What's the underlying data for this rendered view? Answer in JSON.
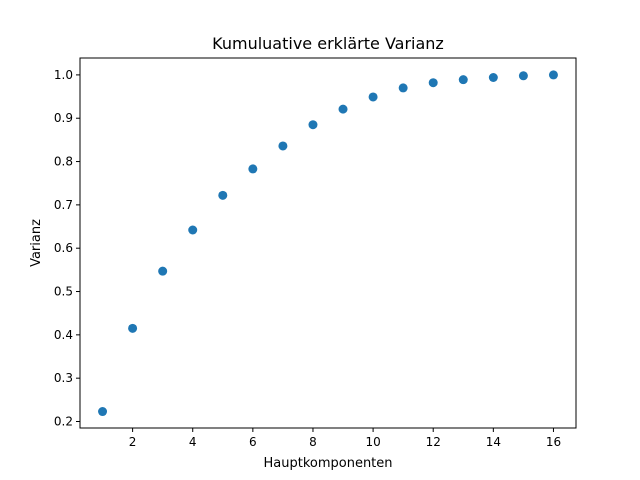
{
  "chart_data": {
    "type": "scatter",
    "title": "Kumuluative erklärte Varianz",
    "xlabel": "Hauptkomponenten",
    "ylabel": "Varianz",
    "xlim": [
      0.25,
      16.75
    ],
    "ylim": [
      0.185,
      1.039
    ],
    "grid": false,
    "xticks": [
      2,
      4,
      6,
      8,
      10,
      12,
      14,
      16
    ],
    "xtick_labels": [
      "2",
      "4",
      "6",
      "8",
      "10",
      "12",
      "14",
      "16"
    ],
    "yticks": [
      0.2,
      0.3,
      0.4,
      0.5,
      0.6,
      0.7,
      0.8,
      0.9,
      1.0
    ],
    "ytick_labels": [
      "0.2",
      "0.3",
      "0.4",
      "0.5",
      "0.6",
      "0.7",
      "0.8",
      "0.9",
      "1.0"
    ],
    "x": [
      1,
      2,
      3,
      4,
      5,
      6,
      7,
      8,
      9,
      10,
      11,
      12,
      13,
      14,
      15,
      16
    ],
    "y": [
      0.223,
      0.415,
      0.547,
      0.642,
      0.722,
      0.783,
      0.836,
      0.885,
      0.921,
      0.949,
      0.97,
      0.982,
      0.989,
      0.994,
      0.998,
      1.0
    ],
    "marker_color": "#1f77b4"
  }
}
